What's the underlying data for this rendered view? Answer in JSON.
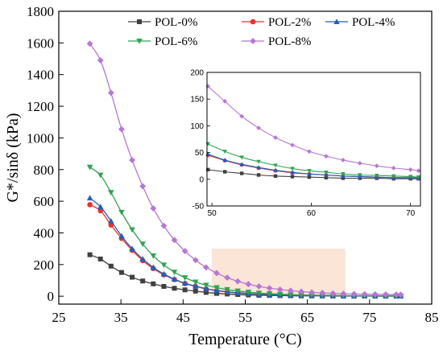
{
  "chart_data": [
    {
      "type": "line",
      "xlabel": "Temperature (°C)",
      "ylabel": "G*/sinδ (kPa)",
      "xlim": [
        25,
        85
      ],
      "ylim": [
        -50,
        1800
      ],
      "x_ticks": [
        25,
        35,
        45,
        55,
        65,
        75,
        85
      ],
      "x_tick_labels": [
        "25",
        "35",
        "45",
        "55",
        "65",
        "75",
        "85"
      ],
      "y_ticks": [
        0,
        200,
        400,
        600,
        800,
        1000,
        1200,
        1400,
        1600,
        1800
      ],
      "y_tick_labels": [
        "0",
        "200",
        "400",
        "600",
        "800",
        "1000",
        "1200",
        "1400",
        "1600",
        "1800"
      ],
      "legend_position": "top",
      "highlight_region": {
        "x_range": [
          49.6,
          71.1
        ],
        "y_range": [
          0,
          300
        ],
        "color": "#fbe5d6"
      },
      "series": [
        {
          "name": "POL-0%",
          "color": "#404040",
          "marker": "square",
          "x": [
            30,
            31.7,
            33.4,
            35.1,
            36.8,
            38.5,
            40.2,
            41.9,
            43.6,
            45.3,
            47,
            48.7,
            50.4,
            52.1,
            53.8,
            55.5,
            57.2,
            58.9,
            60.6,
            62.3,
            64,
            65.7,
            67.4,
            69.1,
            70.8,
            72.5,
            74.2,
            75.9,
            77.6,
            79.3,
            80
          ],
          "y": [
            262,
            235,
            190,
            150,
            120,
            96,
            78,
            62,
            50,
            40,
            32,
            24,
            18,
            14,
            11,
            8,
            6,
            5,
            4,
            3,
            2,
            2,
            2,
            1,
            1,
            1,
            1,
            1,
            1,
            1,
            1
          ]
        },
        {
          "name": "POL-2%",
          "color": "#e8312a",
          "marker": "circle",
          "x": [
            30,
            31.7,
            33.4,
            35.1,
            36.8,
            38.5,
            40.2,
            41.9,
            43.6,
            45.3,
            47,
            48.7,
            50.4,
            52.1,
            53.8,
            55.5,
            57.2,
            58.9,
            60.6,
            62.3,
            64,
            65.7,
            67.4,
            69.1,
            70.8,
            72.5,
            74.2,
            75.9,
            77.6,
            79.3,
            80
          ],
          "y": [
            578,
            540,
            450,
            365,
            290,
            225,
            175,
            135,
            105,
            80,
            62,
            46,
            35,
            27,
            21,
            16,
            12,
            10,
            8,
            6,
            5,
            4,
            3,
            3,
            2,
            2,
            2,
            1,
            1,
            1,
            1
          ]
        },
        {
          "name": "POL-4%",
          "color": "#1f5fbf",
          "marker": "triangle-up",
          "x": [
            30,
            31.7,
            33.4,
            35.1,
            36.8,
            38.5,
            40.2,
            41.9,
            43.6,
            45.3,
            47,
            48.7,
            50.4,
            52.1,
            53.8,
            55.5,
            57.2,
            58.9,
            60.6,
            62.3,
            64,
            65.7,
            67.4,
            69.1,
            70.8,
            72.5,
            74.2,
            75.9,
            77.6,
            79.3,
            80
          ],
          "y": [
            620,
            565,
            475,
            380,
            300,
            235,
            182,
            140,
            108,
            82,
            64,
            48,
            36,
            28,
            22,
            17,
            13,
            10,
            8,
            6,
            5,
            4,
            3,
            3,
            2,
            2,
            2,
            1,
            1,
            1,
            1
          ]
        },
        {
          "name": "POL-6%",
          "color": "#2fa34f",
          "marker": "triangle-down",
          "x": [
            30,
            31.7,
            33.4,
            35.1,
            36.8,
            38.5,
            40.2,
            41.9,
            43.6,
            45.3,
            47,
            48.7,
            50.4,
            52.1,
            53.8,
            55.5,
            57.2,
            58.9,
            60.6,
            62.3,
            64,
            65.7,
            67.4,
            69.1,
            70.8,
            72.5,
            74.2,
            75.9,
            77.6,
            79.3,
            80
          ],
          "y": [
            815,
            765,
            655,
            530,
            420,
            330,
            255,
            197,
            152,
            117,
            90,
            70,
            54,
            42,
            33,
            26,
            20,
            16,
            13,
            10,
            8,
            7,
            6,
            5,
            4,
            3,
            3,
            2,
            2,
            2,
            2
          ]
        },
        {
          "name": "POL-8%",
          "color": "#b875d8",
          "marker": "diamond",
          "x": [
            30,
            31.7,
            33.4,
            35.1,
            36.8,
            38.5,
            40.2,
            41.9,
            43.6,
            45.3,
            47,
            48.7,
            50.4,
            52.1,
            53.8,
            55.5,
            57.2,
            58.9,
            60.6,
            62.3,
            64,
            65.7,
            67.4,
            69.1,
            70.8,
            72.5,
            74.2,
            75.9,
            77.6,
            79.3,
            80
          ],
          "y": [
            1595,
            1490,
            1285,
            1055,
            860,
            695,
            555,
            445,
            355,
            285,
            228,
            182,
            146,
            117,
            94,
            76,
            62,
            51,
            42,
            35,
            29,
            24,
            21,
            18,
            16,
            14,
            13,
            12,
            11,
            10,
            10
          ]
        }
      ]
    },
    {
      "type": "line",
      "role": "inset",
      "xlim": [
        49.5,
        71
      ],
      "ylim": [
        -50,
        200
      ],
      "x_ticks": [
        50,
        60,
        70
      ],
      "x_tick_labels": [
        "50",
        "60",
        "70"
      ],
      "y_ticks": [
        -50,
        0,
        50,
        100,
        150,
        200
      ],
      "y_tick_labels": [
        "-50",
        "0",
        "50",
        "100",
        "150",
        "200"
      ],
      "series": [
        {
          "name": "POL-0%",
          "color": "#404040",
          "marker": "square",
          "x": [
            49.6,
            51.3,
            53,
            54.7,
            56.4,
            58.1,
            59.8,
            61.5,
            63.2,
            64.9,
            66.6,
            68.3,
            70,
            70.8
          ],
          "y": [
            18,
            14,
            11,
            8,
            6,
            5,
            4,
            3,
            2,
            2,
            2,
            1,
            1,
            1
          ]
        },
        {
          "name": "POL-2%",
          "color": "#e8312a",
          "marker": "circle",
          "x": [
            49.6,
            51.3,
            53,
            54.7,
            56.4,
            58.1,
            59.8,
            61.5,
            63.2,
            64.9,
            66.6,
            68.3,
            70,
            70.8
          ],
          "y": [
            45,
            35,
            27,
            21,
            16,
            12,
            10,
            8,
            6,
            5,
            4,
            3,
            3,
            2
          ]
        },
        {
          "name": "POL-4%",
          "color": "#1f5fbf",
          "marker": "triangle-up",
          "x": [
            49.6,
            51.3,
            53,
            54.7,
            56.4,
            58.1,
            59.8,
            61.5,
            63.2,
            64.9,
            66.6,
            68.3,
            70,
            70.8
          ],
          "y": [
            47,
            36,
            28,
            22,
            17,
            13,
            10,
            8,
            6,
            5,
            4,
            3,
            3,
            2
          ]
        },
        {
          "name": "POL-6%",
          "color": "#2fa34f",
          "marker": "triangle-down",
          "x": [
            49.6,
            51.3,
            53,
            54.7,
            56.4,
            58.1,
            59.8,
            61.5,
            63.2,
            64.9,
            66.6,
            68.3,
            70,
            70.8
          ],
          "y": [
            66,
            52,
            41,
            33,
            26,
            20,
            16,
            13,
            10,
            8,
            7,
            6,
            5,
            4
          ]
        },
        {
          "name": "POL-8%",
          "color": "#b875d8",
          "marker": "diamond",
          "x": [
            49.6,
            51.3,
            53,
            54.7,
            56.4,
            58.1,
            59.8,
            61.5,
            63.2,
            64.9,
            66.6,
            68.3,
            70,
            70.8
          ],
          "y": [
            174,
            146,
            118,
            96,
            78,
            64,
            52,
            43,
            36,
            30,
            25,
            21,
            18,
            16
          ]
        }
      ]
    }
  ]
}
